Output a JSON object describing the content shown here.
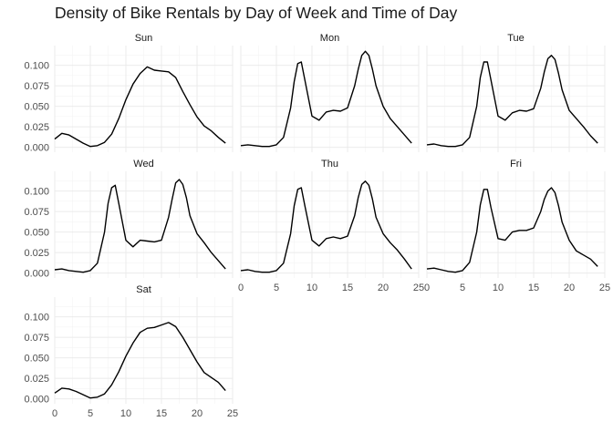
{
  "chart_data": {
    "type": "line",
    "title": "Density of Bike Rentals by Day of Week and Time of Day",
    "xlabel": "",
    "ylabel": "",
    "xlim": [
      0,
      24
    ],
    "ylim": [
      0,
      0.12
    ],
    "x_ticks": [
      "0",
      "5",
      "10",
      "15",
      "20",
      "25"
    ],
    "y_ticks": [
      "0.000",
      "0.025",
      "0.050",
      "0.075",
      "0.100"
    ],
    "grid": true,
    "panels": [
      {
        "name": "Sun",
        "x": [
          0,
          1,
          2,
          3,
          4,
          5,
          6,
          7,
          8,
          9,
          10,
          11,
          12,
          13,
          14,
          15,
          16,
          17,
          18,
          19,
          20,
          21,
          22,
          23,
          24
        ],
        "y": [
          0.01,
          0.017,
          0.015,
          0.01,
          0.005,
          0.001,
          0.002,
          0.006,
          0.016,
          0.035,
          0.058,
          0.077,
          0.09,
          0.098,
          0.094,
          0.093,
          0.092,
          0.085,
          0.068,
          0.052,
          0.037,
          0.026,
          0.02,
          0.012,
          0.005
        ]
      },
      {
        "name": "Mon",
        "x": [
          0,
          1,
          2,
          3,
          4,
          5,
          6,
          7,
          7.5,
          8,
          8.5,
          9,
          10,
          11,
          12,
          13,
          14,
          15,
          16,
          16.5,
          17,
          17.5,
          18,
          18.5,
          19,
          20,
          21,
          22,
          23,
          24
        ],
        "y": [
          0.002,
          0.003,
          0.002,
          0.001,
          0.001,
          0.003,
          0.012,
          0.048,
          0.08,
          0.102,
          0.104,
          0.082,
          0.038,
          0.033,
          0.043,
          0.045,
          0.044,
          0.048,
          0.075,
          0.095,
          0.112,
          0.117,
          0.112,
          0.095,
          0.075,
          0.05,
          0.035,
          0.025,
          0.015,
          0.005
        ]
      },
      {
        "name": "Tue",
        "x": [
          0,
          1,
          2,
          3,
          4,
          5,
          6,
          7,
          7.5,
          8,
          8.5,
          9,
          10,
          11,
          12,
          13,
          14,
          15,
          16,
          16.5,
          17,
          17.5,
          18,
          18.5,
          19,
          20,
          21,
          22,
          23,
          24
        ],
        "y": [
          0.003,
          0.004,
          0.002,
          0.001,
          0.001,
          0.003,
          0.012,
          0.05,
          0.085,
          0.104,
          0.104,
          0.082,
          0.038,
          0.033,
          0.042,
          0.045,
          0.044,
          0.047,
          0.072,
          0.092,
          0.108,
          0.112,
          0.107,
          0.09,
          0.07,
          0.045,
          0.035,
          0.025,
          0.014,
          0.005
        ]
      },
      {
        "name": "Wed",
        "x": [
          0,
          1,
          2,
          3,
          4,
          5,
          6,
          7,
          7.5,
          8,
          8.5,
          9,
          10,
          11,
          12,
          13,
          14,
          15,
          16,
          16.5,
          17,
          17.5,
          18,
          18.5,
          19,
          20,
          21,
          22,
          23,
          24
        ],
        "y": [
          0.004,
          0.005,
          0.003,
          0.002,
          0.001,
          0.003,
          0.012,
          0.05,
          0.085,
          0.104,
          0.107,
          0.085,
          0.04,
          0.032,
          0.04,
          0.039,
          0.038,
          0.04,
          0.068,
          0.09,
          0.11,
          0.114,
          0.108,
          0.092,
          0.07,
          0.048,
          0.037,
          0.025,
          0.015,
          0.005
        ]
      },
      {
        "name": "Thu",
        "x": [
          0,
          1,
          2,
          3,
          4,
          5,
          6,
          7,
          7.5,
          8,
          8.5,
          9,
          10,
          11,
          12,
          13,
          14,
          15,
          16,
          16.5,
          17,
          17.5,
          18,
          18.5,
          19,
          20,
          21,
          22,
          23,
          24
        ],
        "y": [
          0.003,
          0.004,
          0.002,
          0.001,
          0.001,
          0.003,
          0.012,
          0.048,
          0.082,
          0.102,
          0.104,
          0.082,
          0.04,
          0.033,
          0.042,
          0.044,
          0.042,
          0.045,
          0.07,
          0.092,
          0.108,
          0.112,
          0.107,
          0.09,
          0.068,
          0.048,
          0.037,
          0.028,
          0.017,
          0.005
        ]
      },
      {
        "name": "Fri",
        "x": [
          0,
          1,
          2,
          3,
          4,
          5,
          6,
          7,
          7.5,
          8,
          8.5,
          9,
          10,
          11,
          12,
          13,
          14,
          15,
          16,
          16.5,
          17,
          17.5,
          18,
          18.5,
          19,
          20,
          21,
          22,
          23,
          24
        ],
        "y": [
          0.005,
          0.006,
          0.004,
          0.002,
          0.001,
          0.003,
          0.013,
          0.05,
          0.083,
          0.102,
          0.102,
          0.08,
          0.042,
          0.04,
          0.05,
          0.052,
          0.052,
          0.055,
          0.075,
          0.09,
          0.1,
          0.104,
          0.098,
          0.082,
          0.062,
          0.04,
          0.027,
          0.022,
          0.017,
          0.008
        ]
      },
      {
        "name": "Sat",
        "x": [
          0,
          1,
          2,
          3,
          4,
          5,
          6,
          7,
          8,
          9,
          10,
          11,
          12,
          13,
          14,
          15,
          16,
          17,
          18,
          19,
          20,
          21,
          22,
          23,
          24
        ],
        "y": [
          0.007,
          0.013,
          0.012,
          0.009,
          0.005,
          0.001,
          0.002,
          0.006,
          0.017,
          0.033,
          0.052,
          0.068,
          0.081,
          0.086,
          0.087,
          0.09,
          0.093,
          0.088,
          0.075,
          0.06,
          0.045,
          0.032,
          0.026,
          0.02,
          0.01
        ]
      }
    ]
  }
}
